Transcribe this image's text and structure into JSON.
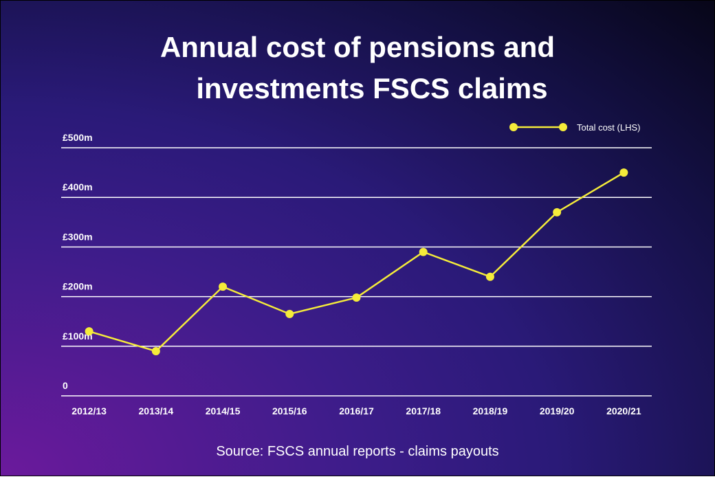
{
  "chart_data": {
    "type": "line",
    "title_lines": [
      "Annual cost of pensions and",
      "investments FSCS claims"
    ],
    "categories": [
      "2012/13",
      "2013/14",
      "2014/15",
      "2015/16",
      "2016/17",
      "2017/18",
      "2018/19",
      "2019/20",
      "2020/21"
    ],
    "series": [
      {
        "name": "Total cost (LHS)",
        "color": "#f5ec3a",
        "values": [
          130,
          90,
          220,
          165,
          198,
          290,
          240,
          370,
          450
        ]
      }
    ],
    "ylim": [
      0,
      500
    ],
    "yticks": [
      0,
      {
        "value": 100,
        "label": "£100m"
      },
      {
        "value": 200,
        "label": "£200m"
      },
      {
        "value": 300,
        "label": "£300m"
      },
      {
        "value": 400,
        "label": "£400m"
      },
      {
        "value": 500,
        "label": "£500m"
      }
    ],
    "grid": true,
    "legend": "top-right",
    "source": "Source: FSCS annual reports - claims payouts"
  }
}
